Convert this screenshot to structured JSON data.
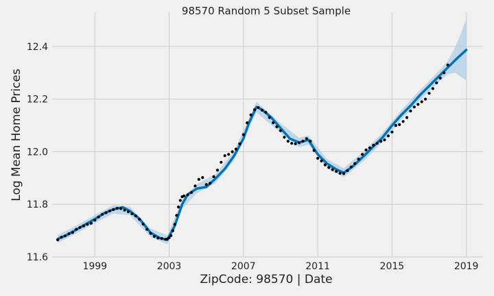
{
  "chart_data": {
    "type": "line",
    "title": "98570 Random 5 Subset Sample",
    "xlabel": "ZipCode: 98570 | Date",
    "ylabel": "Log Mean Home Prices",
    "xlim": [
      1996.7,
      2019.9
    ],
    "ylim": [
      11.6,
      12.53
    ],
    "xticks": [
      1999,
      2003,
      2007,
      2011,
      2015,
      2019
    ],
    "yticks": [
      11.6,
      11.8,
      12.0,
      12.2,
      12.4
    ],
    "ytick_labels": [
      "11.6",
      "11.8",
      "12.0",
      "12.2",
      "12.4"
    ],
    "grid": true,
    "colors": {
      "forecast": "#0072b2",
      "band": "#a9cce6",
      "observed": "#000000",
      "background": "#f0f0f0",
      "grid": "#cbcbcb"
    },
    "series": [
      {
        "kind": "forecast",
        "x": [
          1997.0,
          1997.5,
          1998.0,
          1998.5,
          1999.0,
          1999.5,
          2000.0,
          2000.5,
          2000.9,
          2001.4,
          2002.0,
          2002.5,
          2002.9,
          2003.3,
          2003.7,
          2004.0,
          2004.5,
          2005.0,
          2005.5,
          2006.0,
          2006.5,
          2007.0,
          2007.3,
          2007.7,
          2008.0,
          2008.5,
          2009.0,
          2009.5,
          2010.0,
          2010.5,
          2011.0,
          2011.5,
          2012.0,
          2012.4,
          2012.9,
          2013.5,
          2014.0,
          2014.5,
          2015.0,
          2015.5,
          2016.0,
          2016.5,
          2017.0,
          2017.5,
          2018.0,
          2018.5,
          2019.0
        ],
        "y": [
          11.668,
          11.684,
          11.704,
          11.724,
          11.744,
          11.766,
          11.781,
          11.789,
          11.774,
          11.745,
          11.692,
          11.672,
          11.665,
          11.718,
          11.8,
          11.838,
          11.86,
          11.866,
          11.898,
          11.935,
          11.985,
          12.05,
          12.11,
          12.17,
          12.16,
          12.13,
          12.09,
          12.05,
          12.035,
          12.045,
          11.99,
          11.955,
          11.933,
          11.92,
          11.945,
          11.985,
          12.02,
          12.055,
          12.1,
          12.14,
          12.175,
          12.215,
          12.25,
          12.285,
          12.32,
          12.355,
          12.387
        ]
      },
      {
        "kind": "uncertainty",
        "x": [
          1997.0,
          1998.0,
          1999.0,
          2000.0,
          2000.9,
          2002.0,
          2002.9,
          2003.7,
          2004.5,
          2005.5,
          2006.5,
          2007.7,
          2009.0,
          2010.0,
          2010.5,
          2011.5,
          2012.4,
          2013.5,
          2014.5,
          2015.5,
          2016.5,
          2017.5,
          2018.0,
          2018.4,
          2018.7,
          2019.0
        ],
        "upper": [
          11.683,
          11.719,
          11.759,
          11.797,
          11.79,
          11.708,
          11.682,
          11.817,
          11.877,
          11.915,
          12.003,
          12.19,
          12.108,
          12.053,
          12.062,
          11.972,
          11.937,
          12.003,
          12.073,
          12.158,
          12.234,
          12.306,
          12.345,
          12.398,
          12.448,
          12.505
        ],
        "lower": [
          11.653,
          11.689,
          11.729,
          11.765,
          11.758,
          11.676,
          11.648,
          11.783,
          11.843,
          11.881,
          11.967,
          12.15,
          12.072,
          12.017,
          12.028,
          11.938,
          11.903,
          11.967,
          12.037,
          12.122,
          12.196,
          12.264,
          12.295,
          12.3,
          12.285,
          12.27
        ]
      },
      {
        "kind": "observed",
        "x": [
          1997.0,
          1997.2,
          1997.4,
          1997.6,
          1997.8,
          1998.0,
          1998.2,
          1998.4,
          1998.6,
          1998.8,
          1999.0,
          1999.2,
          1999.4,
          1999.6,
          1999.8,
          2000.0,
          2000.2,
          2000.4,
          2000.6,
          2000.8,
          2001.0,
          2001.2,
          2001.4,
          2001.6,
          2001.8,
          2002.0,
          2002.2,
          2002.4,
          2002.6,
          2002.8,
          2002.9,
          2003.0,
          2003.1,
          2003.2,
          2003.3,
          2003.4,
          2003.5,
          2003.6,
          2003.7,
          2003.8,
          2004.0,
          2004.2,
          2004.4,
          2004.6,
          2004.8,
          2005.0,
          2005.2,
          2005.4,
          2005.6,
          2005.8,
          2006.0,
          2006.2,
          2006.4,
          2006.6,
          2006.8,
          2007.0,
          2007.2,
          2007.4,
          2007.6,
          2007.8,
          2008.0,
          2008.2,
          2008.4,
          2008.6,
          2008.8,
          2009.0,
          2009.2,
          2009.4,
          2009.6,
          2009.8,
          2010.0,
          2010.2,
          2010.4,
          2010.6,
          2010.8,
          2011.0,
          2011.2,
          2011.4,
          2011.6,
          2011.8,
          2012.0,
          2012.2,
          2012.4,
          2012.6,
          2012.8,
          2013.0,
          2013.2,
          2013.4,
          2013.6,
          2013.8,
          2014.0,
          2014.2,
          2014.4,
          2014.6,
          2014.8,
          2015.0,
          2015.2,
          2015.4,
          2015.6,
          2015.8,
          2016.0,
          2016.2,
          2016.4,
          2016.6,
          2016.8,
          2017.0,
          2017.2,
          2017.4,
          2017.6,
          2017.8,
          2018.0
        ],
        "y": [
          11.665,
          11.675,
          11.68,
          11.688,
          11.693,
          11.705,
          11.712,
          11.718,
          11.724,
          11.728,
          11.74,
          11.752,
          11.762,
          11.768,
          11.775,
          11.78,
          11.785,
          11.784,
          11.778,
          11.772,
          11.764,
          11.756,
          11.743,
          11.725,
          11.705,
          11.69,
          11.678,
          11.672,
          11.67,
          11.667,
          11.668,
          11.673,
          11.681,
          11.7,
          11.724,
          11.758,
          11.79,
          11.815,
          11.829,
          11.832,
          11.836,
          11.845,
          11.87,
          11.895,
          11.902,
          11.875,
          11.88,
          11.905,
          11.93,
          11.96,
          11.985,
          11.99,
          12.0,
          12.01,
          12.03,
          12.065,
          12.11,
          12.14,
          12.16,
          12.168,
          12.158,
          12.15,
          12.13,
          12.11,
          12.095,
          12.08,
          12.055,
          12.04,
          12.032,
          12.03,
          12.034,
          12.04,
          12.05,
          12.04,
          12.005,
          11.975,
          11.965,
          11.95,
          11.94,
          11.932,
          11.925,
          11.918,
          11.917,
          11.928,
          11.942,
          11.955,
          11.972,
          11.99,
          12.007,
          12.015,
          12.025,
          12.032,
          12.04,
          12.045,
          12.06,
          12.075,
          12.1,
          12.103,
          12.115,
          12.13,
          12.155,
          12.17,
          12.18,
          12.19,
          12.2,
          12.222,
          12.24,
          12.262,
          12.28,
          12.3,
          12.33
        ]
      }
    ]
  }
}
